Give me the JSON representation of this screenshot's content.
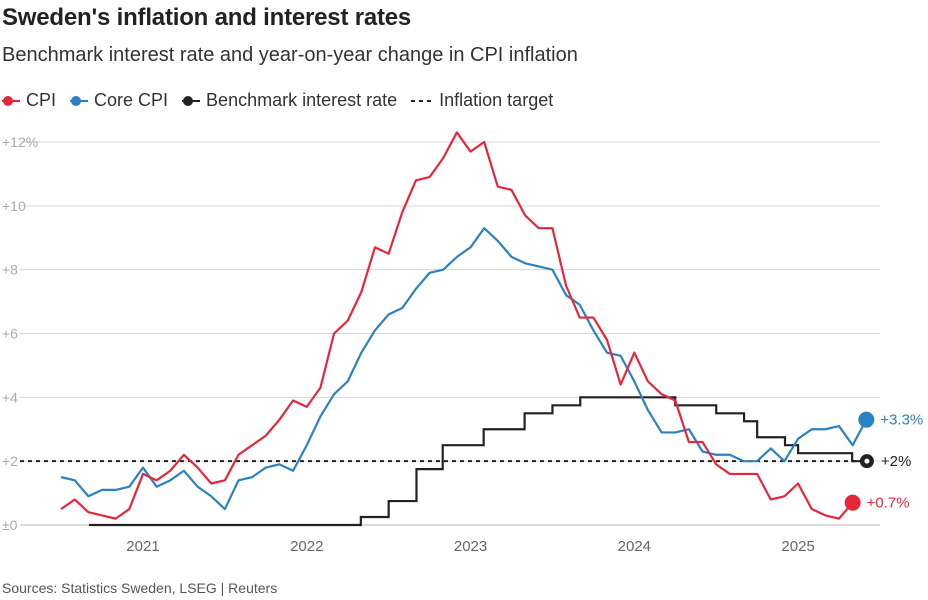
{
  "chart_data": {
    "type": "line",
    "title": "Sweden's inflation and interest rates",
    "subtitle": "Benchmark interest rate and year-on-year change in CPI inflation",
    "source": "Sources: Statistics Sweden, LSEG | Reuters",
    "x_ticks": [
      {
        "label": "2021",
        "value": 2021.0
      },
      {
        "label": "2022",
        "value": 2022.0
      },
      {
        "label": "2023",
        "value": 2023.0
      },
      {
        "label": "2024",
        "value": 2024.0
      },
      {
        "label": "2025",
        "value": 2025.0
      }
    ],
    "xlim": [
      2020.42,
      2025.5
    ],
    "ylim": [
      0,
      12
    ],
    "y_ticks": [
      {
        "label": "±0",
        "value": 0
      },
      {
        "label": "+2",
        "value": 2
      },
      {
        "label": "+4",
        "value": 4
      },
      {
        "label": "+6",
        "value": 6
      },
      {
        "label": "+8",
        "value": 8
      },
      {
        "label": "+10",
        "value": 10
      },
      {
        "label": "+12%",
        "value": 12
      }
    ],
    "legend": [
      {
        "label": "CPI",
        "series": "cpi"
      },
      {
        "label": "Core CPI",
        "series": "core"
      },
      {
        "label": "Benchmark interest rate",
        "series": "rate"
      },
      {
        "label": "Inflation target",
        "series": "target"
      }
    ],
    "series": [
      {
        "key": "cpi",
        "name": "CPI",
        "color": "#e8263a",
        "start": 2020.5,
        "step": 0.08333,
        "values": [
          0.5,
          0.8,
          0.4,
          0.3,
          0.2,
          0.5,
          1.6,
          1.4,
          1.7,
          2.2,
          1.8,
          1.3,
          1.4,
          2.2,
          2.5,
          2.8,
          3.3,
          3.9,
          3.7,
          4.3,
          6.0,
          6.4,
          7.3,
          8.7,
          8.5,
          9.8,
          10.8,
          10.9,
          11.5,
          12.3,
          11.7,
          12.0,
          10.6,
          10.5,
          9.7,
          9.3,
          9.3,
          7.5,
          6.5,
          6.5,
          5.8,
          4.4,
          5.4,
          4.5,
          4.1,
          3.9,
          2.6,
          2.6,
          1.9,
          1.6,
          1.6,
          1.6,
          0.8,
          0.9,
          1.3,
          0.5,
          0.3,
          0.2,
          0.7
        ]
      },
      {
        "key": "core",
        "name": "Core CPI",
        "color": "#2a82c4",
        "start": 2020.5,
        "step": 0.08333,
        "values": [
          1.5,
          1.4,
          0.9,
          1.1,
          1.1,
          1.2,
          1.8,
          1.2,
          1.4,
          1.7,
          1.2,
          0.9,
          0.5,
          1.4,
          1.5,
          1.8,
          1.9,
          1.7,
          2.5,
          3.4,
          4.1,
          4.5,
          5.4,
          6.1,
          6.6,
          6.8,
          7.4,
          7.9,
          8.0,
          8.4,
          8.7,
          9.3,
          8.9,
          8.4,
          8.2,
          8.1,
          8.0,
          7.2,
          6.9,
          6.1,
          5.4,
          5.3,
          4.5,
          3.6,
          2.9,
          2.9,
          3.0,
          2.3,
          2.2,
          2.2,
          2.0,
          2.0,
          2.4,
          2.0,
          2.7,
          3.0,
          3.0,
          3.1,
          2.5,
          3.3
        ]
      },
      {
        "key": "rate",
        "name": "Benchmark interest rate",
        "color": "#222222",
        "step_line": true,
        "points": [
          {
            "x": 2020.67,
            "y": 0
          },
          {
            "x": 2022.33,
            "y": 0.25
          },
          {
            "x": 2022.5,
            "y": 0.75
          },
          {
            "x": 2022.67,
            "y": 1.75
          },
          {
            "x": 2022.83,
            "y": 2.5
          },
          {
            "x": 2023.08,
            "y": 3.0
          },
          {
            "x": 2023.33,
            "y": 3.5
          },
          {
            "x": 2023.5,
            "y": 3.75
          },
          {
            "x": 2023.67,
            "y": 4.0
          },
          {
            "x": 2024.25,
            "y": 3.75
          },
          {
            "x": 2024.5,
            "y": 3.5
          },
          {
            "x": 2024.67,
            "y": 3.25
          },
          {
            "x": 2024.75,
            "y": 2.75
          },
          {
            "x": 2024.92,
            "y": 2.5
          },
          {
            "x": 2025.0,
            "y": 2.25
          },
          {
            "x": 2025.33,
            "y": 2.0
          },
          {
            "x": 2025.42,
            "y": 2.0
          }
        ]
      },
      {
        "key": "target",
        "name": "Inflation target",
        "color": "#222222",
        "dashed": true,
        "value": 2.0
      }
    ],
    "end_labels": [
      {
        "series": "core",
        "text": "+3.3%",
        "value": 3.3,
        "color": "#2a82c4"
      },
      {
        "series": "rate",
        "text": "+2%",
        "value": 2.0,
        "color": "#222222"
      },
      {
        "series": "cpi",
        "text": "+0.7%",
        "value": 0.7,
        "color": "#e8263a"
      }
    ]
  }
}
